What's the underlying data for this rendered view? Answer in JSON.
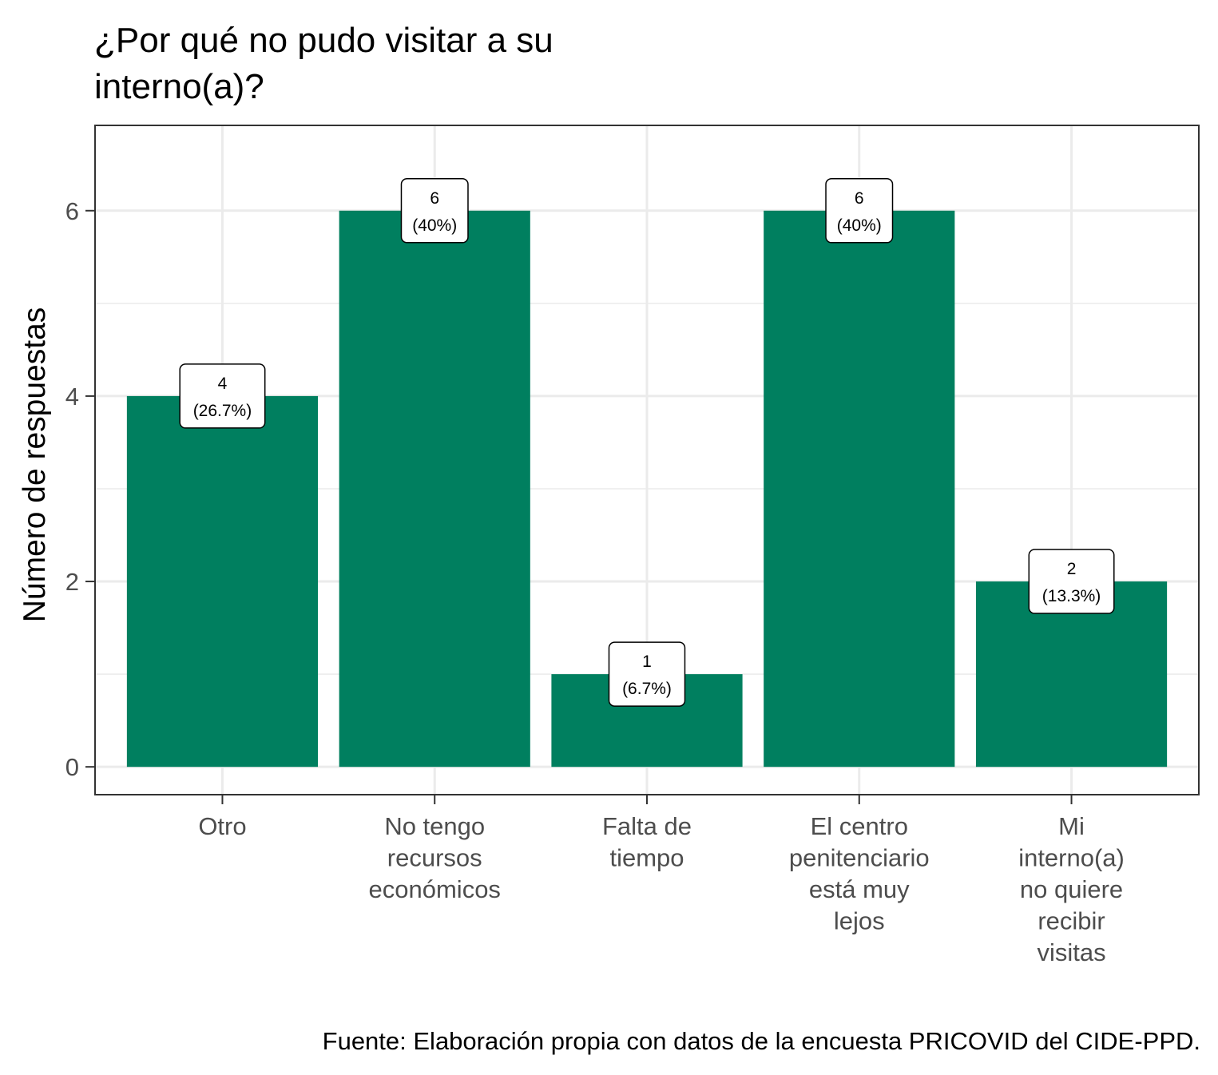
{
  "chart_data": {
    "type": "bar",
    "title_lines": [
      "¿Por qué no pudo visitar a su",
      "interno(a)?"
    ],
    "xlabel": "",
    "ylabel": "Número de respuestas",
    "categories": [
      [
        "Otro"
      ],
      [
        "No tengo",
        "recursos",
        "económicos"
      ],
      [
        "Falta de",
        "tiempo"
      ],
      [
        "El centro",
        "penitenciario",
        "está muy",
        "lejos"
      ],
      [
        "Mi",
        "interno(a)",
        "no quiere",
        "recibir",
        "visitas"
      ]
    ],
    "values": [
      4,
      6,
      1,
      6,
      2
    ],
    "labels": [
      [
        "4",
        "(26.7%)"
      ],
      [
        "6",
        "(40%)"
      ],
      [
        "1",
        "(6.7%)"
      ],
      [
        "6",
        "(40%)"
      ],
      [
        "2",
        "(13.3%)"
      ]
    ],
    "ylim": [
      -0.3,
      6.92
    ],
    "yticks": [
      0,
      2,
      4,
      6
    ],
    "yminor": [
      1,
      3,
      5
    ],
    "grid": true,
    "legend": "none",
    "bar_color": "#007F5F",
    "caption": "Fuente: Elaboración propia con datos de la encuesta PRICOVID del CIDE-PPD."
  }
}
